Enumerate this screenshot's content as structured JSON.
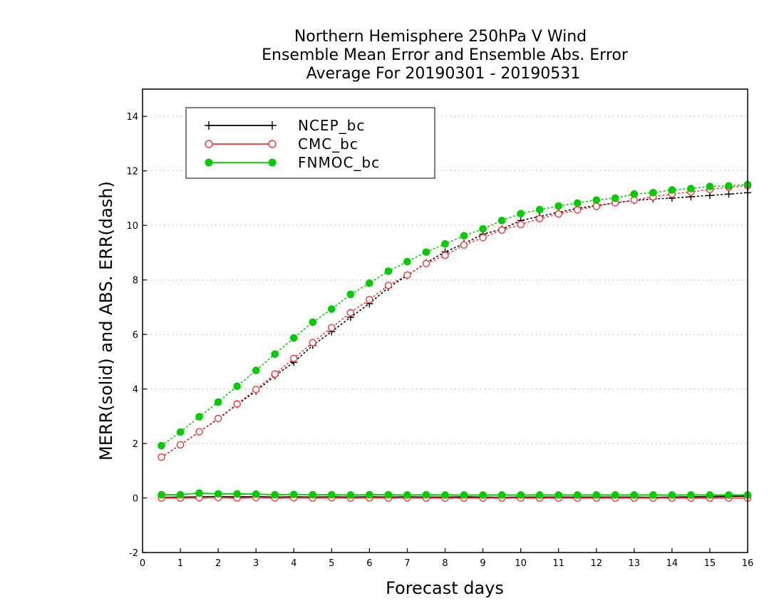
{
  "chart_data": {
    "type": "line",
    "title_lines": [
      "Northern Hemisphere 250hPa V Wind",
      "Ensemble Mean Error and Ensemble Abs. Error",
      "Average For 20190301 - 20190531"
    ],
    "xlabel": "Forecast days",
    "ylabel": "MERR(solid) and ABS. ERR(dash)",
    "xlim": [
      0,
      16
    ],
    "ylim": [
      -2,
      15
    ],
    "xticks": [
      "0",
      "1",
      "2",
      "3",
      "4",
      "5",
      "6",
      "7",
      "8",
      "9",
      "10",
      "11",
      "12",
      "13",
      "14",
      "15",
      "16"
    ],
    "yticks": [
      "-2",
      "0",
      "2",
      "4",
      "6",
      "8",
      "10",
      "12",
      "14"
    ],
    "grid": "horizontal dotted",
    "legend_position": "top-left",
    "x": [
      0.5,
      1,
      1.5,
      2,
      2.5,
      3,
      3.5,
      4,
      4.5,
      5,
      5.5,
      6,
      6.5,
      7,
      7.5,
      8,
      8.5,
      9,
      9.5,
      10,
      10.5,
      11,
      11.5,
      12,
      12.5,
      13,
      13.5,
      14,
      14.5,
      15,
      15.5,
      16
    ],
    "series": [
      {
        "name": "NCEP_bc",
        "color": "#000000",
        "marker": "plus",
        "abs_error": [
          1.5,
          1.95,
          2.43,
          2.9,
          3.43,
          3.92,
          4.48,
          4.98,
          5.6,
          6.1,
          6.63,
          7.13,
          7.72,
          8.16,
          8.63,
          9.03,
          9.33,
          9.68,
          9.86,
          10.18,
          10.33,
          10.48,
          10.63,
          10.73,
          10.83,
          10.91,
          10.97,
          11.0,
          11.05,
          11.1,
          11.15,
          11.2
        ],
        "mean_error": [
          0.02,
          0.03,
          0.04,
          0.05,
          0.04,
          0.05,
          0.03,
          0.04,
          0.03,
          0.04,
          0.03,
          0.04,
          0.03,
          0.04,
          0.03,
          0.03,
          0.04,
          0.03,
          0.02,
          0.03,
          0.03,
          0.03,
          0.03,
          0.03,
          0.03,
          0.03,
          0.02,
          0.03,
          0.04,
          0.05,
          0.06,
          0.07
        ]
      },
      {
        "name": "CMC_bc",
        "color": "#ff3333",
        "marker": "circle-open",
        "abs_error": [
          1.5,
          1.95,
          2.43,
          2.92,
          3.45,
          3.98,
          4.55,
          5.12,
          5.7,
          6.25,
          6.8,
          7.28,
          7.8,
          8.18,
          8.6,
          8.9,
          9.28,
          9.55,
          9.83,
          10.03,
          10.25,
          10.42,
          10.57,
          10.7,
          10.83,
          10.93,
          11.05,
          11.15,
          11.23,
          11.32,
          11.4,
          11.45
        ],
        "mean_error": [
          0.0,
          0.0,
          0.01,
          0.02,
          0.0,
          0.02,
          0.0,
          0.01,
          0.0,
          0.01,
          0.0,
          0.01,
          0.0,
          0.01,
          0.0,
          0.0,
          0.0,
          0.0,
          0.0,
          0.0,
          0.0,
          0.0,
          0.0,
          0.0,
          0.0,
          0.0,
          0.0,
          0.0,
          0.0,
          0.0,
          0.0,
          0.0
        ]
      },
      {
        "name": "FNMOC_bc",
        "color": "#00cc00",
        "marker": "circle-filled",
        "abs_error": [
          1.92,
          2.42,
          2.98,
          3.52,
          4.1,
          4.68,
          5.28,
          5.87,
          6.45,
          6.93,
          7.47,
          7.88,
          8.32,
          8.67,
          9.02,
          9.32,
          9.62,
          9.87,
          10.18,
          10.43,
          10.58,
          10.71,
          10.82,
          10.93,
          11.0,
          11.15,
          11.2,
          11.3,
          11.35,
          11.43,
          11.45,
          11.5
        ],
        "mean_error": [
          0.12,
          0.12,
          0.18,
          0.15,
          0.15,
          0.14,
          0.12,
          0.13,
          0.12,
          0.12,
          0.11,
          0.12,
          0.12,
          0.11,
          0.12,
          0.11,
          0.11,
          0.11,
          0.11,
          0.11,
          0.11,
          0.11,
          0.11,
          0.11,
          0.11,
          0.11,
          0.11,
          0.11,
          0.11,
          0.11,
          0.11,
          0.11
        ]
      }
    ]
  }
}
